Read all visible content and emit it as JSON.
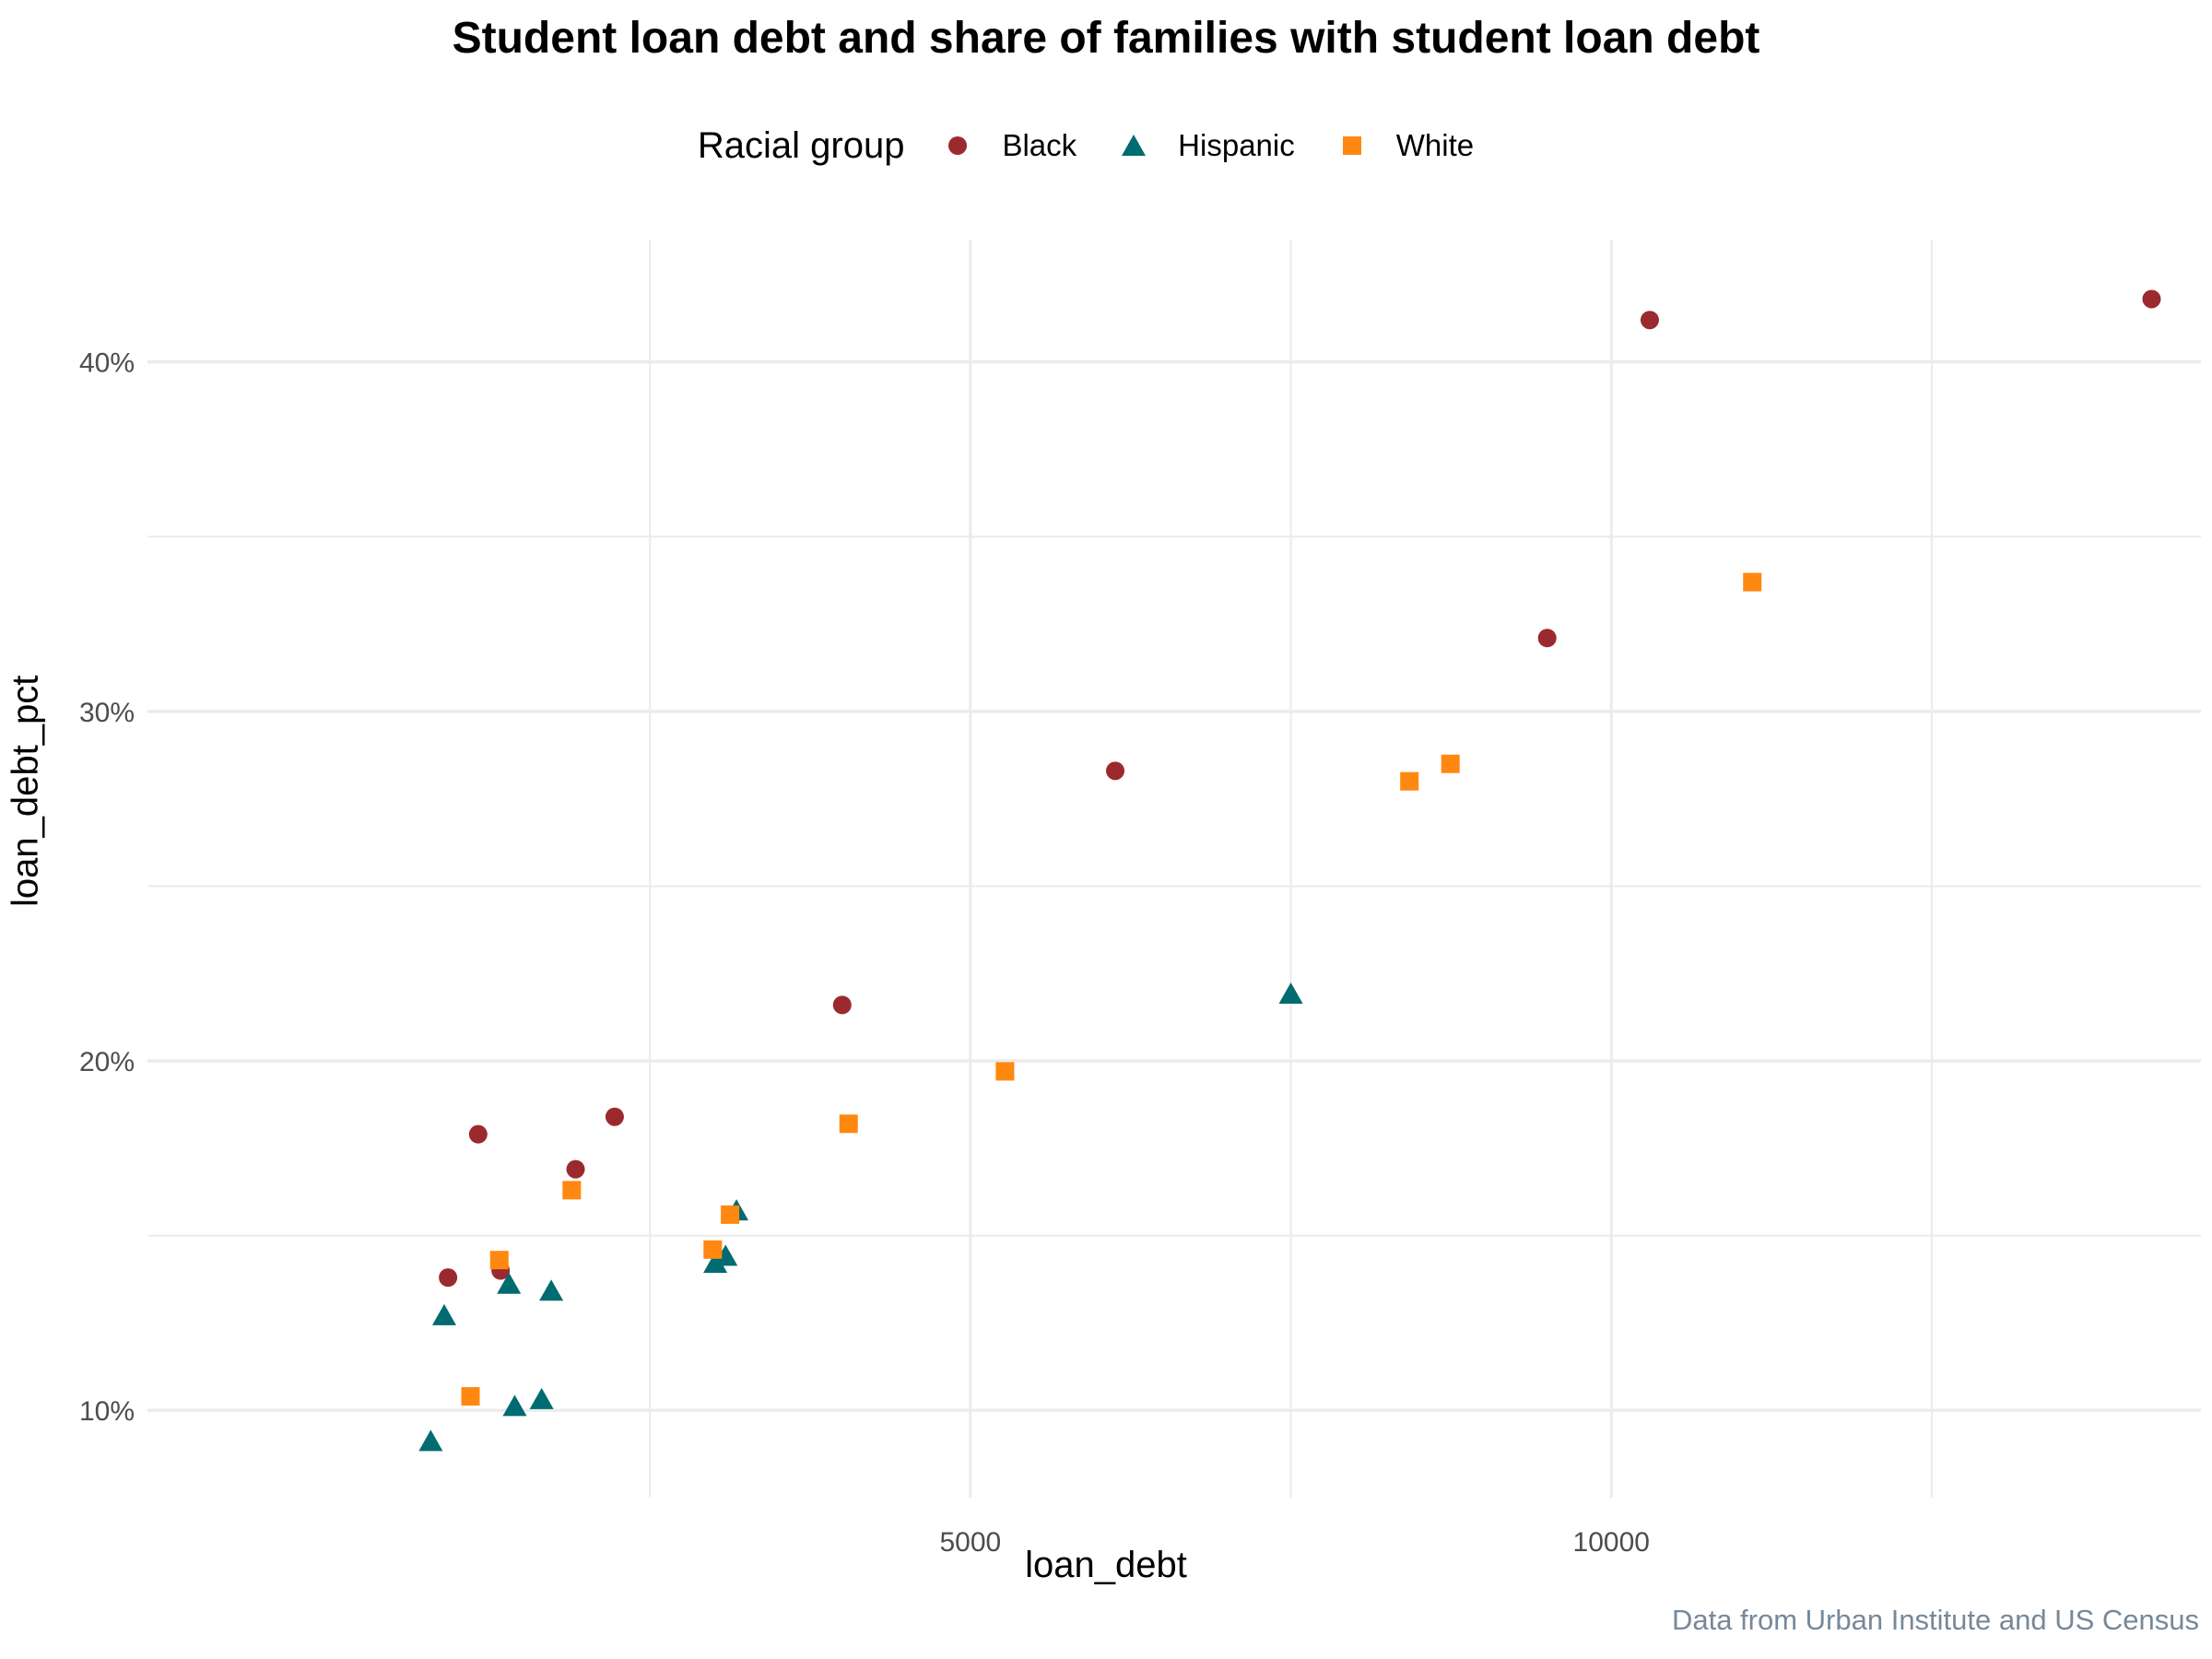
{
  "chart_data": {
    "type": "scatter",
    "title": "Student loan debt and share of families with student loan debt",
    "xlabel": "loan_debt",
    "ylabel": "loan_debt_pct",
    "caption": "Data from Urban Institute and US Census",
    "legend_title": "Racial group",
    "legend_position": "top",
    "grid": true,
    "xlim": [
      -1420,
      14600
    ],
    "ylim": [
      0.075,
      0.435
    ],
    "x_ticks": [
      5000,
      10000
    ],
    "x_tick_labels": [
      "5000",
      "10000"
    ],
    "x_gridlines": [
      2500,
      5000,
      7500,
      10000,
      12500
    ],
    "y_ticks": [
      0.1,
      0.2,
      0.3,
      0.4
    ],
    "y_tick_labels": [
      "10%",
      "20%",
      "30%",
      "40%"
    ],
    "y_gridlines": [
      0.1,
      0.15,
      0.2,
      0.25,
      0.3,
      0.35,
      0.4
    ],
    "series": [
      {
        "name": "Black",
        "color": "#9B2A2E",
        "shape": "circle",
        "points": [
          {
            "x": 925,
            "y": 0.138
          },
          {
            "x": 1160,
            "y": 0.179
          },
          {
            "x": 1335,
            "y": 0.14
          },
          {
            "x": 1920,
            "y": 0.169
          },
          {
            "x": 2225,
            "y": 0.184
          },
          {
            "x": 4000,
            "y": 0.216
          },
          {
            "x": 6130,
            "y": 0.283
          },
          {
            "x": 9500,
            "y": 0.321
          },
          {
            "x": 10300,
            "y": 0.412
          },
          {
            "x": 14215,
            "y": 0.418
          }
        ]
      },
      {
        "name": "Hispanic",
        "color": "#006B70",
        "shape": "triangle",
        "points": [
          {
            "x": 790,
            "y": 0.091
          },
          {
            "x": 895,
            "y": 0.127
          },
          {
            "x": 1400,
            "y": 0.136
          },
          {
            "x": 1445,
            "y": 0.101
          },
          {
            "x": 1655,
            "y": 0.103
          },
          {
            "x": 1730,
            "y": 0.134
          },
          {
            "x": 3010,
            "y": 0.142
          },
          {
            "x": 3090,
            "y": 0.144
          },
          {
            "x": 3175,
            "y": 0.157
          },
          {
            "x": 7500,
            "y": 0.219
          }
        ]
      },
      {
        "name": "White",
        "color": "#FF8811",
        "shape": "square",
        "points": [
          {
            "x": 1100,
            "y": 0.104
          },
          {
            "x": 1325,
            "y": 0.143
          },
          {
            "x": 1890,
            "y": 0.163
          },
          {
            "x": 2990,
            "y": 0.146
          },
          {
            "x": 3125,
            "y": 0.156
          },
          {
            "x": 4050,
            "y": 0.182
          },
          {
            "x": 5270,
            "y": 0.197
          },
          {
            "x": 8425,
            "y": 0.28
          },
          {
            "x": 8745,
            "y": 0.285
          },
          {
            "x": 11100,
            "y": 0.337
          }
        ]
      }
    ]
  }
}
